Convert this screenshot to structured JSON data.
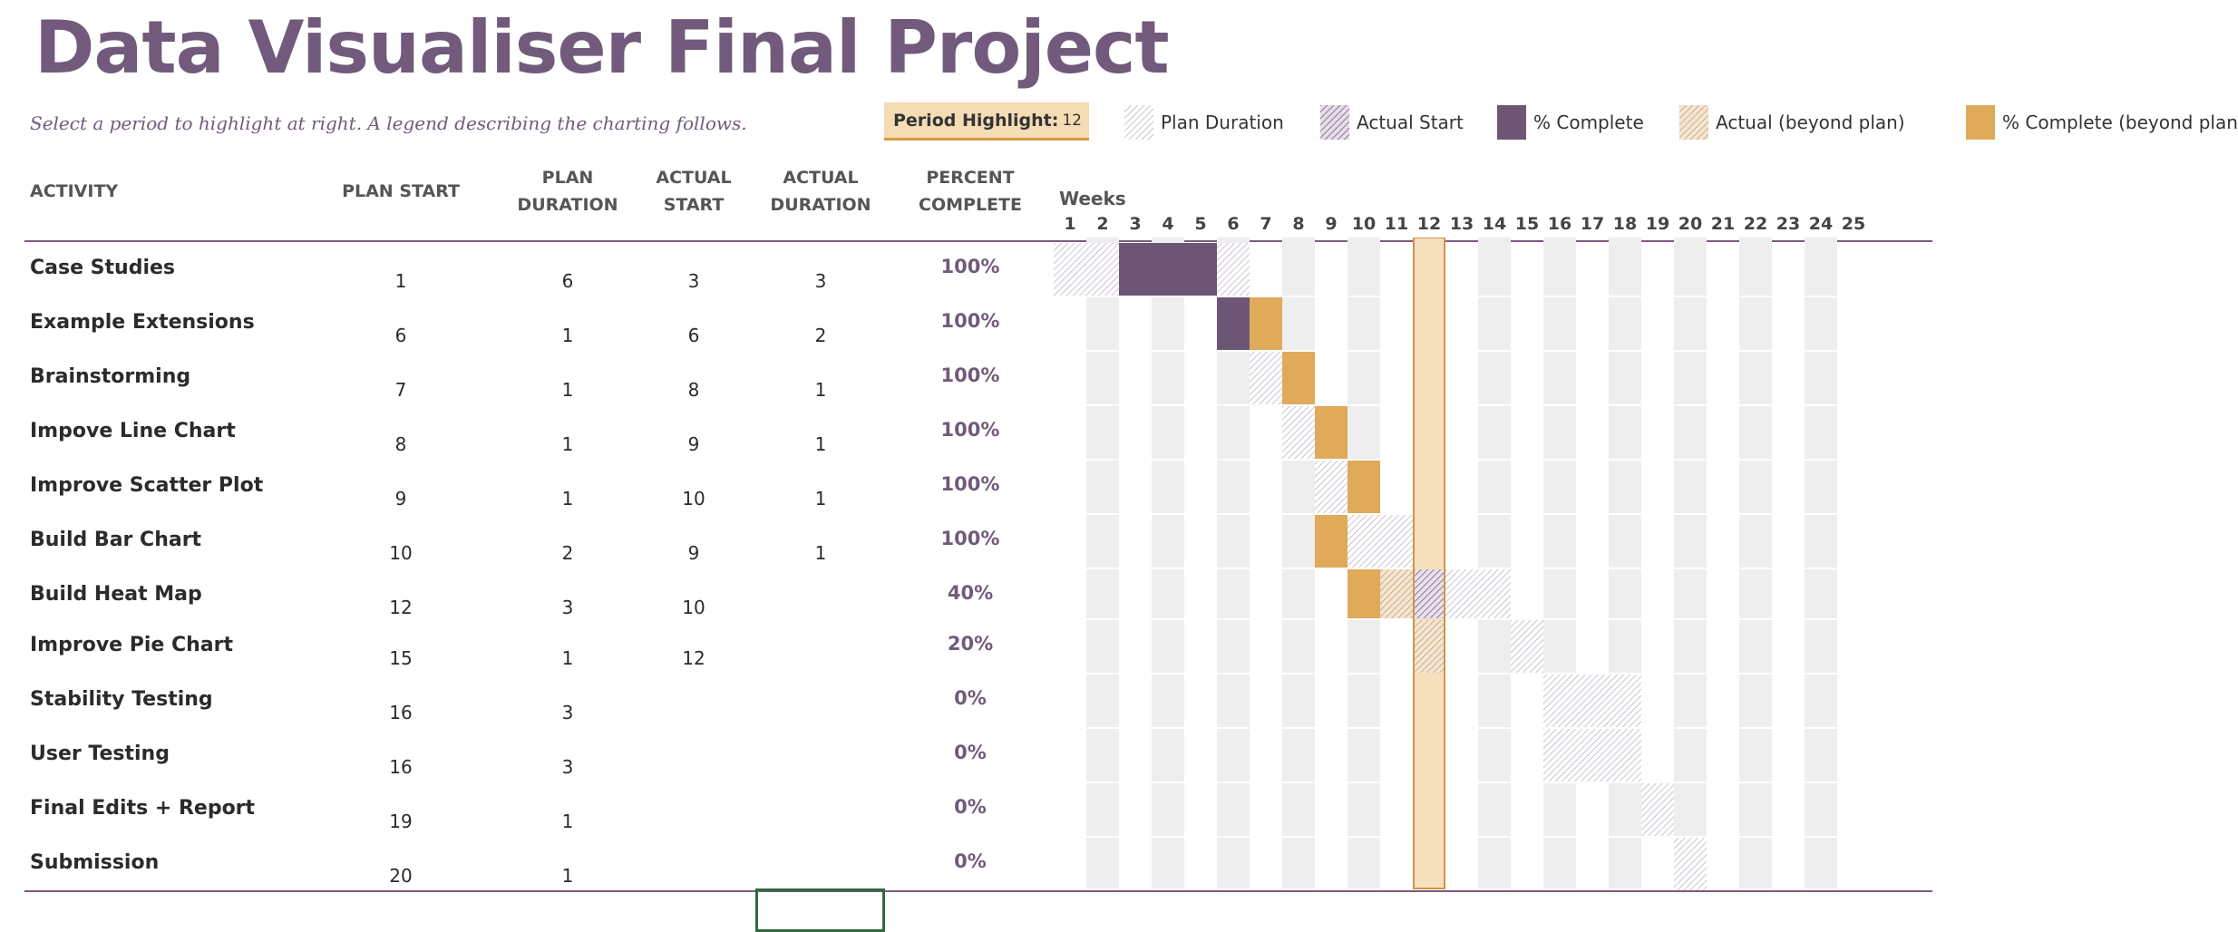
{
  "title": "Data Visualiser Final Project",
  "subtitle": "Select a period to highlight at right.  A legend describing the charting follows.",
  "period_highlight": {
    "label": "Period Highlight:",
    "value": "12"
  },
  "legend": [
    {
      "label": "Plan Duration",
      "icon": "hatch-light"
    },
    {
      "label": "Actual Start",
      "icon": "hatch-dark"
    },
    {
      "label": "% Complete",
      "icon": "solid-purple"
    },
    {
      "label": "Actual (beyond plan)",
      "icon": "hatch-orange"
    },
    {
      "label": "% Complete (beyond plan)",
      "icon": "solid-orange"
    }
  ],
  "columns": {
    "activity": "ACTIVITY",
    "plan_start": "PLAN START",
    "plan_duration_1": "PLAN",
    "plan_duration_2": "DURATION",
    "actual_start_1": "ACTUAL",
    "actual_start_2": "START",
    "actual_duration_1": "ACTUAL",
    "actual_duration_2": "DURATION",
    "percent_1": "PERCENT",
    "percent_2": "COMPLETE",
    "weeks": "Weeks"
  },
  "weeks": [
    "1",
    "2",
    "3",
    "4",
    "5",
    "6",
    "7",
    "8",
    "9",
    "10",
    "11",
    "12",
    "13",
    "14",
    "15",
    "16",
    "17",
    "18",
    "19",
    "20",
    "21",
    "22",
    "23",
    "24",
    "25"
  ],
  "colors": {
    "purple": "#6d5675",
    "orange": "#dfaa5a",
    "highlight": "#f5dfbd",
    "highlight_border": "#d1954a",
    "stripe": "#eeeeee"
  },
  "activities": [
    {
      "name": "Case Studies",
      "plan_start": "1",
      "plan_duration": "6",
      "actual_start": "3",
      "actual_duration": "3",
      "percent": "100%",
      "pct": 100
    },
    {
      "name": "Example Extensions",
      "plan_start": "6",
      "plan_duration": "1",
      "actual_start": "6",
      "actual_duration": "2",
      "percent": "100%",
      "pct": 100
    },
    {
      "name": "Brainstorming",
      "plan_start": "7",
      "plan_duration": "1",
      "actual_start": "8",
      "actual_duration": "1",
      "percent": "100%",
      "pct": 100
    },
    {
      "name": "Impove Line Chart",
      "plan_start": "8",
      "plan_duration": "1",
      "actual_start": "9",
      "actual_duration": "1",
      "percent": "100%",
      "pct": 100
    },
    {
      "name": "Improve Scatter Plot",
      "plan_start": "9",
      "plan_duration": "1",
      "actual_start": "10",
      "actual_duration": "1",
      "percent": "100%",
      "pct": 100
    },
    {
      "name": "Build Bar Chart",
      "plan_start": "10",
      "plan_duration": "2",
      "actual_start": "9",
      "actual_duration": "1",
      "percent": "100%",
      "pct": 100
    },
    {
      "name": "Build Heat Map",
      "plan_start": "12",
      "plan_duration": "3",
      "actual_start": "10",
      "actual_duration": "",
      "percent": "40%",
      "pct": 40
    },
    {
      "name": "Improve Pie Chart",
      "plan_start": "15",
      "plan_duration": "1",
      "actual_start": "12",
      "actual_duration": "",
      "percent": "20%",
      "pct": 20
    },
    {
      "name": "Stability Testing",
      "plan_start": "16",
      "plan_duration": "3",
      "actual_start": "",
      "actual_duration": "",
      "percent": "0%",
      "pct": 0
    },
    {
      "name": "User Testing",
      "plan_start": "16",
      "plan_duration": "3",
      "actual_start": "",
      "actual_duration": "",
      "percent": "0%",
      "pct": 0
    },
    {
      "name": "Final Edits + Report",
      "plan_start": "19",
      "plan_duration": "1",
      "actual_start": "",
      "actual_duration": "",
      "percent": "0%",
      "pct": 0
    },
    {
      "name": "Submission",
      "plan_start": "20",
      "plan_duration": "1",
      "actual_start": "",
      "actual_duration": "",
      "percent": "0%",
      "pct": 0
    }
  ]
}
